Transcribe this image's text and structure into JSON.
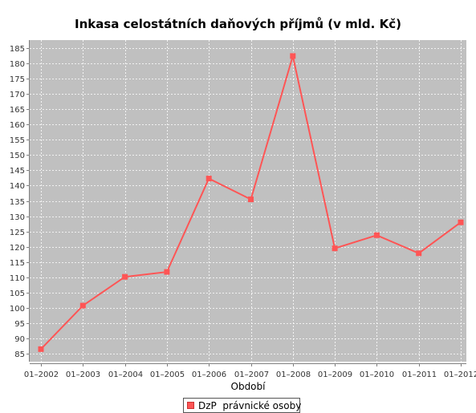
{
  "chart_data": {
    "type": "line",
    "title": "Inkasa celostátních daňových příjmů (v mld. Kč)",
    "xlabel": "Období",
    "ylabel": "",
    "categories": [
      "01–2002",
      "01–2003",
      "01–2004",
      "01–2005",
      "01–2006",
      "01–2007",
      "01–2008",
      "01–2009",
      "01–2010",
      "01–2011",
      "01–2012"
    ],
    "ylim": [
      82.5,
      187.5
    ],
    "yticks": [
      85,
      90,
      95,
      100,
      105,
      110,
      115,
      120,
      125,
      130,
      135,
      140,
      145,
      150,
      155,
      160,
      165,
      170,
      175,
      180,
      185
    ],
    "grid": true,
    "legend_position": "bottom",
    "series": [
      {
        "name": "DzP  právnické osoby",
        "color": "#ff5555",
        "values": [
          86.6,
          100.8,
          110.2,
          111.8,
          142.3,
          135.5,
          182.3,
          119.5,
          123.8,
          117.9,
          128.0
        ]
      }
    ],
    "colors": {
      "plot_background": "#c0c0c0",
      "gridline": "#ffffff",
      "series_line": "#ff5555"
    }
  }
}
